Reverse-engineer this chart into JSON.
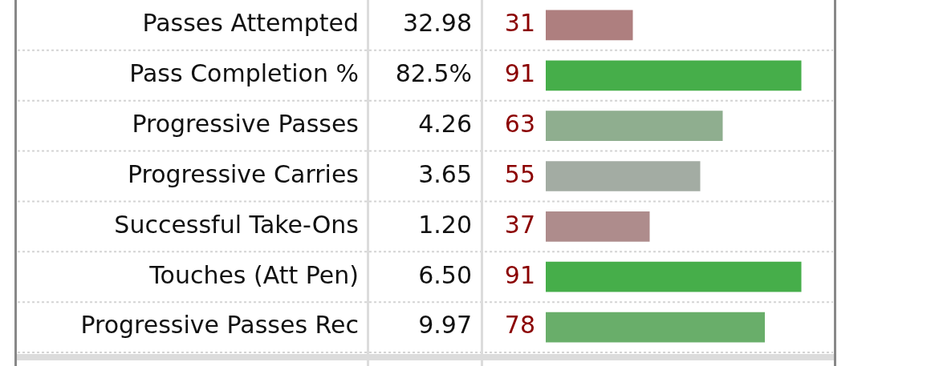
{
  "chart_data": {
    "type": "bar",
    "orientation": "horizontal",
    "categories": [
      "Passes Attempted",
      "Pass Completion %",
      "Progressive Passes",
      "Progressive Carries",
      "Successful Take-Ons",
      "Touches (Att Pen)",
      "Progressive Passes Rec"
    ],
    "values": [
      31,
      91,
      63,
      55,
      37,
      91,
      78
    ],
    "colors": [
      "#ae7f7f",
      "#46ae4a",
      "#8fae8f",
      "#a3aca3",
      "#ae8c8c",
      "#46ae4a",
      "#69ae6a"
    ],
    "tick_labels": "y",
    "grid": "y",
    "data_labels": true,
    "annotations": [
      "32.98",
      "82.5%",
      "4.26",
      "3.65",
      "1.20",
      "6.50",
      "9.97"
    ]
  }
}
